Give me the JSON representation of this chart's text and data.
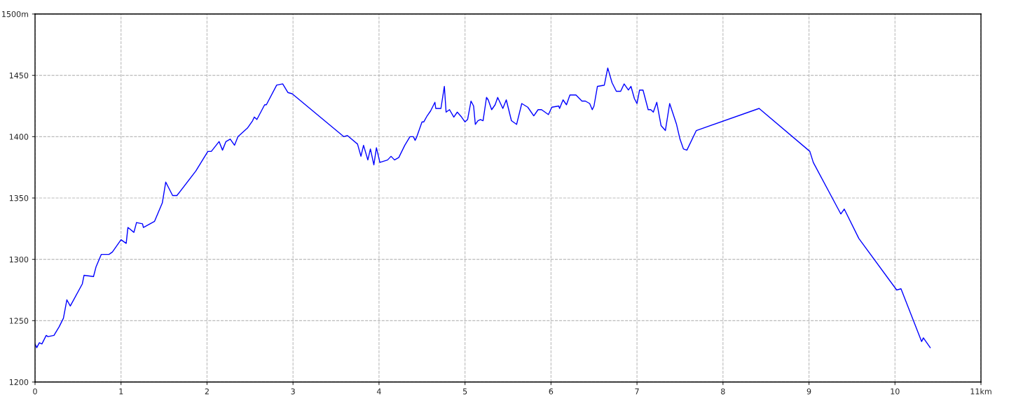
{
  "chart_data": {
    "type": "line",
    "x": [
      0,
      0.02,
      0.05,
      0.08,
      0.13,
      0.15,
      0.22,
      0.28,
      0.33,
      0.37,
      0.41,
      0.55,
      0.57,
      0.68,
      0.71,
      0.77,
      0.86,
      0.9,
      1.0,
      1.06,
      1.08,
      1.15,
      1.18,
      1.25,
      1.26,
      1.39,
      1.48,
      1.52,
      1.6,
      1.65,
      1.87,
      2.01,
      2.05,
      2.14,
      2.18,
      2.22,
      2.27,
      2.32,
      2.36,
      2.47,
      2.53,
      2.55,
      2.58,
      2.67,
      2.69,
      2.81,
      2.88,
      2.94,
      2.99,
      3.59,
      3.63,
      3.75,
      3.79,
      3.82,
      3.87,
      3.9,
      3.94,
      3.97,
      4.01,
      4.1,
      4.14,
      4.18,
      4.23,
      4.3,
      4.36,
      4.4,
      4.42,
      4.44,
      4.5,
      4.52,
      4.56,
      4.6,
      4.65,
      4.66,
      4.72,
      4.76,
      4.78,
      4.82,
      4.87,
      4.91,
      4.96,
      5.0,
      5.03,
      5.07,
      5.1,
      5.12,
      5.15,
      5.18,
      5.21,
      5.25,
      5.27,
      5.31,
      5.35,
      5.38,
      5.44,
      5.48,
      5.54,
      5.6,
      5.66,
      5.73,
      5.8,
      5.85,
      5.89,
      5.97,
      6.01,
      6.09,
      6.1,
      6.14,
      6.18,
      6.22,
      6.29,
      6.36,
      6.4,
      6.45,
      6.48,
      6.5,
      6.54,
      6.62,
      6.66,
      6.71,
      6.76,
      6.81,
      6.85,
      6.9,
      6.93,
      6.97,
      7.0,
      7.03,
      7.07,
      7.13,
      7.16,
      7.19,
      7.23,
      7.28,
      7.33,
      7.38,
      7.46,
      7.5,
      7.54,
      7.58,
      7.69,
      8.42,
      9.01,
      9.05,
      9.37,
      9.41,
      9.58,
      10.02,
      10.07,
      10.31,
      10.33,
      10.41
    ],
    "series": [
      {
        "color": "#0000ff",
        "values": [
          1231,
          1228,
          1232,
          1231,
          1238,
          1237,
          1238,
          1245,
          1252,
          1267,
          1262,
          1280,
          1287,
          1286,
          1294,
          1304,
          1304,
          1306,
          1316,
          1313,
          1326,
          1322,
          1330,
          1329,
          1326,
          1331,
          1346,
          1363,
          1352,
          1352,
          1372,
          1388,
          1388,
          1396,
          1389,
          1396,
          1398,
          1393,
          1400,
          1407,
          1413,
          1416,
          1414,
          1426,
          1426,
          1442,
          1443,
          1436,
          1435,
          1400,
          1401,
          1394,
          1384,
          1393,
          1381,
          1390,
          1377,
          1391,
          1379,
          1381,
          1384,
          1381,
          1383,
          1393,
          1400,
          1400,
          1397,
          1400,
          1412,
          1412,
          1417,
          1421,
          1428,
          1423,
          1423,
          1441,
          1420,
          1422,
          1416,
          1420,
          1416,
          1412,
          1414,
          1429,
          1425,
          1410,
          1413,
          1414,
          1413,
          1432,
          1430,
          1422,
          1426,
          1432,
          1423,
          1430,
          1413,
          1410,
          1427,
          1424,
          1417,
          1422,
          1422,
          1418,
          1424,
          1425,
          1423,
          1430,
          1426,
          1434,
          1434,
          1429,
          1429,
          1427,
          1422,
          1425,
          1441,
          1442,
          1456,
          1444,
          1437,
          1437,
          1443,
          1438,
          1441,
          1431,
          1427,
          1438,
          1438,
          1422,
          1422,
          1420,
          1428,
          1409,
          1405,
          1427,
          1410,
          1398,
          1390,
          1389,
          1405,
          1423,
          1388,
          1379,
          1337,
          1341,
          1317,
          1275,
          1276,
          1233,
          1236,
          1228
        ]
      }
    ],
    "xlim": [
      0,
      11
    ],
    "xticks": [
      0,
      1,
      2,
      3,
      4,
      5,
      6,
      7,
      8,
      9,
      10,
      {
        "value": 11,
        "label": "11km"
      }
    ],
    "ylim": [
      1200,
      1500
    ],
    "yticks": [
      1200,
      1250,
      1300,
      1350,
      1400,
      1450,
      {
        "value": 1500,
        "label": "1500m"
      }
    ],
    "grid": true,
    "line_style": "solid",
    "marker": "none"
  }
}
